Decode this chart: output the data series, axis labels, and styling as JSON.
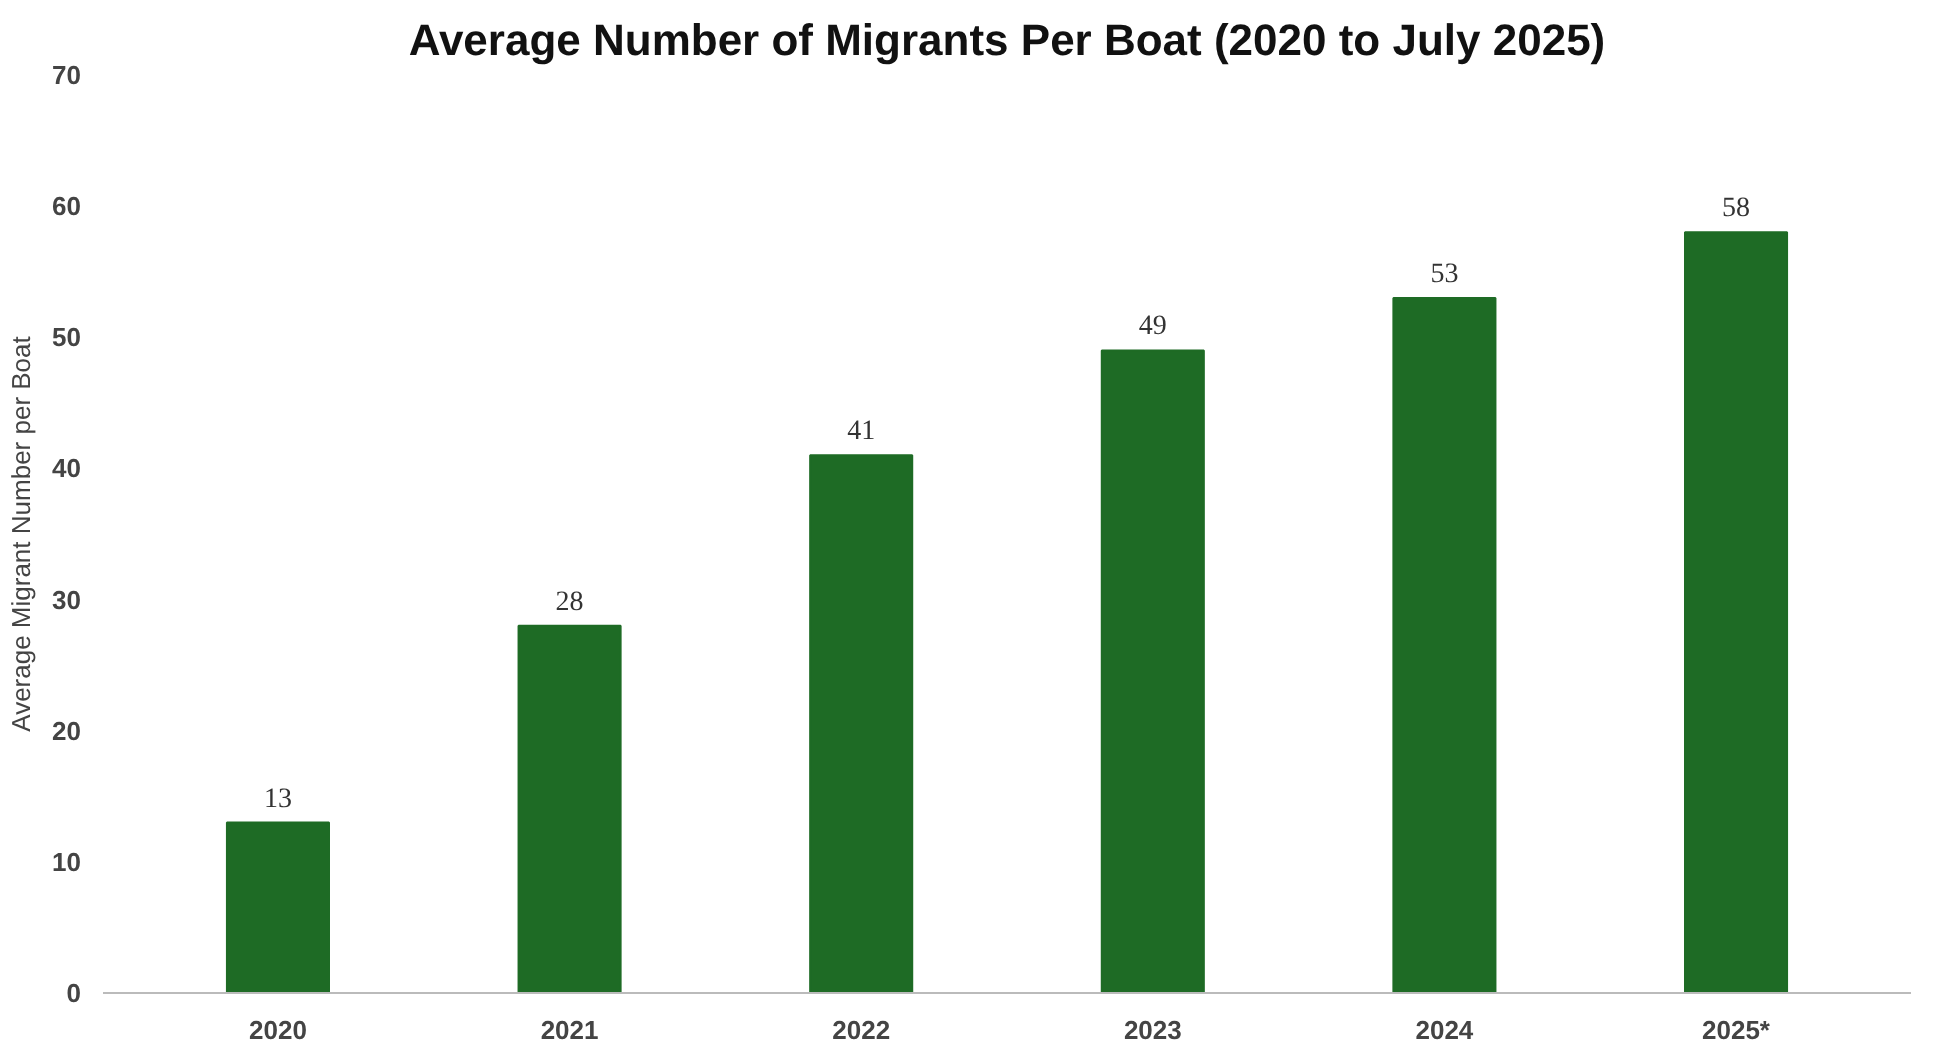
{
  "chart_data": {
    "type": "bar",
    "title": "Average Number of Migrants Per Boat (2020 to July 2025)",
    "ylabel": "Average Migrant Number per Boat",
    "categories": [
      "2020",
      "2021",
      "2022",
      "2023",
      "2024",
      "2025*"
    ],
    "values": [
      13,
      28,
      41,
      49,
      53,
      58
    ],
    "color": "#1e6b25",
    "ylim": [
      0,
      70
    ],
    "yticks": [
      0,
      10,
      20,
      30,
      40,
      50,
      60,
      70
    ],
    "grid": false,
    "data_labels": true
  }
}
